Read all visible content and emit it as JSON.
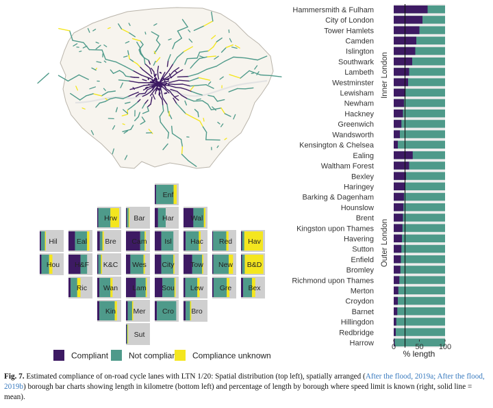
{
  "colors": {
    "compliant": "#3d1a63",
    "not_compliant": "#4e9a8a",
    "unknown": "#f4e61f",
    "tile_bg": "#cfcfcf",
    "map_fill": "#f7f4ee"
  },
  "legend": {
    "compliant": "Compliant",
    "not_compliant": "Not compliant",
    "unknown": "Compliance unknown"
  },
  "caption": {
    "label": "Fig. 7.",
    "text1": " Estimated compliance of on-road cycle lanes with LTN 1/20: Spatial distribution (top left), spatially arranged (",
    "link1": "After the flood, 2019a; After the flood, 2019b",
    "text2": ") borough bar charts showing length in kilometre (bottom left) and percentage of length by borough where speed limit is known (right, solid line = mean)."
  },
  "chart_data": [
    {
      "type": "map",
      "title": "",
      "description_series": [
        "Compliant",
        "Not compliant",
        "Compliance unknown"
      ]
    },
    {
      "type": "bar",
      "title": "",
      "orientation": "horizontal",
      "stacked": true,
      "xlabel": "% length",
      "xlim": [
        0,
        100
      ],
      "xticks": [
        0,
        50,
        100
      ],
      "mean_line": 22,
      "series_names": [
        "Compliant",
        "Not compliant"
      ],
      "groups": [
        {
          "name": "Inner London",
          "categories": [
            "Hammersmith & Fulham",
            "City of London",
            "Tower Hamlets",
            "Camden",
            "Islington",
            "Southwark",
            "Lambeth",
            "Westminster",
            "Lewisham",
            "Newham",
            "Hackney",
            "Greenwich",
            "Wandsworth",
            "Kensington & Chelsea"
          ],
          "compliant": [
            66,
            56,
            50,
            44,
            42,
            36,
            30,
            28,
            23,
            20,
            18,
            15,
            12,
            8
          ]
        },
        {
          "name": "Outer London",
          "categories": [
            "Ealing",
            "Waltham Forest",
            "Bexley",
            "Haringey",
            "Barking & Dagenham",
            "Hounslow",
            "Brent",
            "Kingston upon Thames",
            "Havering",
            "Sutton",
            "Enfield",
            "Bromley",
            "Richmond upon Thames",
            "Merton",
            "Croydon",
            "Barnet",
            "Hillingdon",
            "Redbridge",
            "Harrow"
          ],
          "compliant": [
            37,
            30,
            24,
            22,
            20,
            19,
            18,
            17,
            16,
            15,
            14,
            13,
            11,
            9,
            8,
            7,
            5,
            4,
            2
          ]
        }
      ]
    },
    {
      "type": "bar",
      "title": "",
      "layout": "tile-grid",
      "series_names": [
        "Compliant",
        "Not compliant",
        "Compliance unknown"
      ],
      "tiles": [
        {
          "label": "Enf",
          "row": 0,
          "col": 4,
          "c": 6,
          "n": 80,
          "u": 14
        },
        {
          "label": "Hrw",
          "row": 1,
          "col": 2,
          "c": 5,
          "n": 55,
          "u": 40
        },
        {
          "label": "Bar",
          "row": 1,
          "col": 3,
          "c": 4,
          "n": 8,
          "u": 4
        },
        {
          "label": "Har",
          "row": 1,
          "col": 4,
          "c": 15,
          "n": 35,
          "u": 0
        },
        {
          "label": "Wal",
          "row": 1,
          "col": 5,
          "c": 45,
          "n": 48,
          "u": 7
        },
        {
          "label": "Hil",
          "row": 2,
          "col": 0,
          "c": 6,
          "n": 18,
          "u": 4
        },
        {
          "label": "Eal",
          "row": 2,
          "col": 1,
          "c": 30,
          "n": 55,
          "u": 10
        },
        {
          "label": "Bre",
          "row": 2,
          "col": 2,
          "c": 12,
          "n": 12,
          "u": 6
        },
        {
          "label": "Cam",
          "row": 2,
          "col": 3,
          "c": 65,
          "n": 20,
          "u": 5
        },
        {
          "label": "Isl",
          "row": 2,
          "col": 4,
          "c": 30,
          "n": 55,
          "u": 0
        },
        {
          "label": "Hac",
          "row": 2,
          "col": 5,
          "c": 10,
          "n": 60,
          "u": 8
        },
        {
          "label": "Red",
          "row": 2,
          "col": 6,
          "c": 4,
          "n": 60,
          "u": 10
        },
        {
          "label": "Hav",
          "row": 2,
          "col": 7,
          "c": 5,
          "n": 10,
          "u": 85
        },
        {
          "label": "Hou",
          "row": 3,
          "col": 0,
          "c": 8,
          "n": 35,
          "u": 15
        },
        {
          "label": "H&F",
          "row": 3,
          "col": 1,
          "c": 55,
          "n": 30,
          "u": 0
        },
        {
          "label": "K&C",
          "row": 3,
          "col": 2,
          "c": 5,
          "n": 12,
          "u": 5
        },
        {
          "label": "Wes",
          "row": 3,
          "col": 3,
          "c": 20,
          "n": 60,
          "u": 6
        },
        {
          "label": "City",
          "row": 3,
          "col": 4,
          "c": 30,
          "n": 55,
          "u": 5
        },
        {
          "label": "Tow",
          "row": 3,
          "col": 5,
          "c": 40,
          "n": 45,
          "u": 5
        },
        {
          "label": "New",
          "row": 3,
          "col": 6,
          "c": 5,
          "n": 70,
          "u": 20
        },
        {
          "label": "B&D",
          "row": 3,
          "col": 7,
          "c": 5,
          "n": 12,
          "u": 85
        },
        {
          "label": "Ric",
          "row": 4,
          "col": 1,
          "c": 10,
          "n": 30,
          "u": 15
        },
        {
          "label": "Wan",
          "row": 4,
          "col": 2,
          "c": 10,
          "n": 50,
          "u": 10
        },
        {
          "label": "Lam",
          "row": 4,
          "col": 3,
          "c": 45,
          "n": 45,
          "u": 5
        },
        {
          "label": "Sou",
          "row": 4,
          "col": 4,
          "c": 35,
          "n": 55,
          "u": 5
        },
        {
          "label": "Lew",
          "row": 4,
          "col": 5,
          "c": 8,
          "n": 55,
          "u": 10
        },
        {
          "label": "Gre",
          "row": 4,
          "col": 6,
          "c": 6,
          "n": 60,
          "u": 12
        },
        {
          "label": "Bex",
          "row": 4,
          "col": 7,
          "c": 10,
          "n": 40,
          "u": 15
        },
        {
          "label": "Kin",
          "row": 5,
          "col": 2,
          "c": 10,
          "n": 70,
          "u": 10
        },
        {
          "label": "Mer",
          "row": 5,
          "col": 3,
          "c": 8,
          "n": 20,
          "u": 5
        },
        {
          "label": "Cro",
          "row": 5,
          "col": 4,
          "c": 10,
          "n": 88,
          "u": 0
        },
        {
          "label": "Bro",
          "row": 5,
          "col": 5,
          "c": 10,
          "n": 20,
          "u": 5
        },
        {
          "label": "Sut",
          "row": 6,
          "col": 3,
          "c": 3,
          "n": 4,
          "u": 3
        }
      ]
    }
  ]
}
